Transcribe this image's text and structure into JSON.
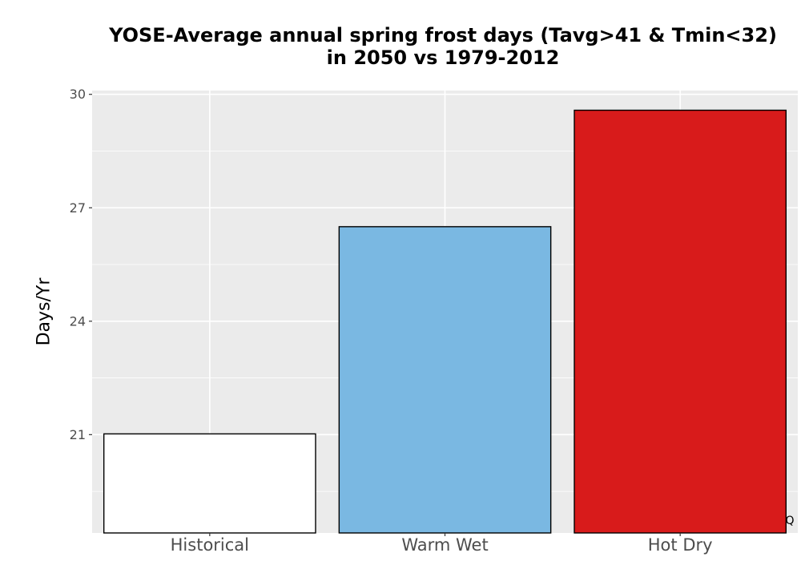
{
  "chart_data": {
    "type": "bar",
    "title": [
      "YOSE-Average annual spring frost days (Tavg>41 & Tmin<32)",
      "in 2050 vs 1979-2012"
    ],
    "xlabel": "",
    "ylabel": "Days/Yr",
    "categories": [
      "Historical",
      "Warm Wet",
      "Hot Dry"
    ],
    "values": [
      21.02,
      26.5,
      29.58
    ],
    "colors": [
      "#ffffff",
      "#7ab8e2",
      "#d81b1b"
    ],
    "yticks": [
      21,
      24,
      27,
      30
    ],
    "ylim": [
      18.4,
      30.1
    ],
    "grid": true,
    "corner_label": "Q"
  }
}
